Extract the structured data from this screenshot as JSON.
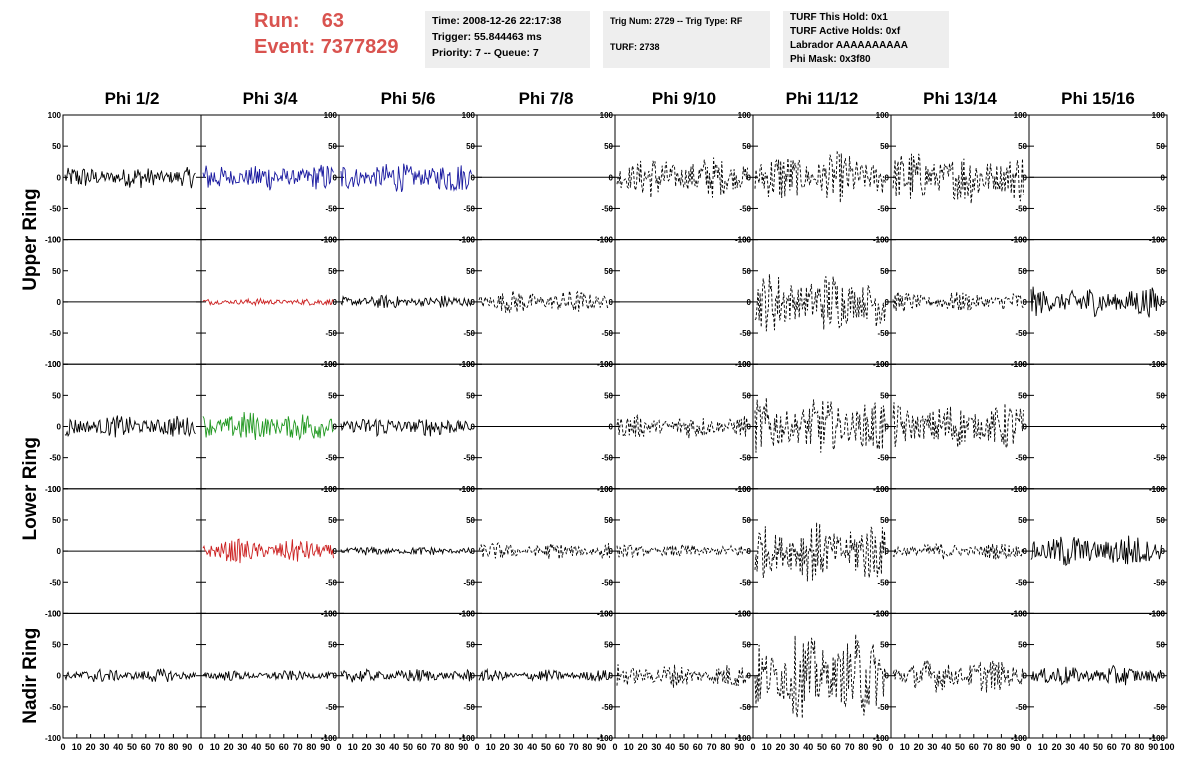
{
  "run": {
    "label": "Run:",
    "value": "63"
  },
  "event": {
    "label": "Event:",
    "value": "7377829"
  },
  "time_box": {
    "line1": "Time: 2008-12-26 22:17:38",
    "line2": "Trigger: 55.844463 ms",
    "line3": "Priority: 7 -- Queue: 7"
  },
  "trig_box": {
    "line1": "Trig Num: 2729 -- Trig Type: RF",
    "line2": "TURF: 2738"
  },
  "turf_box": {
    "line1": "TURF This Hold: 0x1",
    "line2": "TURF Active Holds: 0xf",
    "line3": "Labrador AAAAAAAAAA",
    "line4": "Phi Mask: 0x3f80"
  },
  "chart_data": {
    "type": "line",
    "columns": [
      "Phi 1/2",
      "Phi 3/4",
      "Phi 5/6",
      "Phi 7/8",
      "Phi 9/10",
      "Phi 11/12",
      "Phi 13/14",
      "Phi 15/16"
    ],
    "ring_labels": [
      "Upper Ring",
      "Lower Ring",
      "Nadir Ring"
    ],
    "x_ticks": [
      "0",
      "10",
      "20",
      "30",
      "40",
      "50",
      "60",
      "70",
      "80",
      "90",
      "100"
    ],
    "y_ticks": [
      "100",
      "50",
      "0",
      "-50",
      "-100"
    ],
    "xlim": [
      0,
      100
    ],
    "ylim": [
      -100,
      100
    ],
    "colors": {
      "black": "#000000",
      "blue": "#1a1aa0",
      "red": "#cc2222",
      "green": "#229922"
    },
    "panels": [
      [
        {
          "style": "solid",
          "color": "black",
          "amp": 13
        },
        {
          "style": "solid",
          "color": "blue",
          "amp": 16
        },
        {
          "style": "solid",
          "color": "blue",
          "amp": 18
        },
        {
          "style": "flat",
          "color": "black",
          "amp": 0
        },
        {
          "style": "dashed",
          "color": "black",
          "amp": 25
        },
        {
          "style": "dashed",
          "color": "black",
          "amp": 30
        },
        {
          "style": "dashed",
          "color": "black",
          "amp": 32
        },
        {
          "style": "flat",
          "color": "black",
          "amp": 0
        }
      ],
      [
        {
          "style": "flat",
          "color": "black",
          "amp": 0
        },
        {
          "style": "solid",
          "color": "red",
          "amp": 4
        },
        {
          "style": "solid",
          "color": "black",
          "amp": 8
        },
        {
          "style": "dashed",
          "color": "black",
          "amp": 14
        },
        {
          "style": "flat",
          "color": "black",
          "amp": 0
        },
        {
          "style": "dashed",
          "color": "black",
          "amp": 36
        },
        {
          "style": "dashed",
          "color": "black",
          "amp": 12
        },
        {
          "style": "solid",
          "color": "black",
          "amp": 18
        }
      ],
      [
        {
          "style": "solid",
          "color": "black",
          "amp": 13
        },
        {
          "style": "solid",
          "color": "green",
          "amp": 18
        },
        {
          "style": "solid",
          "color": "black",
          "amp": 12
        },
        {
          "style": "flat",
          "color": "black",
          "amp": 0
        },
        {
          "style": "dashed",
          "color": "black",
          "amp": 14
        },
        {
          "style": "dashed",
          "color": "black",
          "amp": 34
        },
        {
          "style": "dashed",
          "color": "black",
          "amp": 28
        },
        {
          "style": "flat",
          "color": "black",
          "amp": 0
        }
      ],
      [
        {
          "style": "flat",
          "color": "black",
          "amp": 0
        },
        {
          "style": "solid",
          "color": "red",
          "amp": 14
        },
        {
          "style": "solid",
          "color": "black",
          "amp": 5
        },
        {
          "style": "dashed",
          "color": "black",
          "amp": 10
        },
        {
          "style": "dashed",
          "color": "black",
          "amp": 8
        },
        {
          "style": "dashed",
          "color": "black",
          "amp": 36
        },
        {
          "style": "dashed",
          "color": "black",
          "amp": 10
        },
        {
          "style": "solid",
          "color": "black",
          "amp": 20
        }
      ],
      [
        {
          "style": "solid",
          "color": "black",
          "amp": 8
        },
        {
          "style": "solid",
          "color": "black",
          "amp": 6
        },
        {
          "style": "solid",
          "color": "black",
          "amp": 8
        },
        {
          "style": "solid",
          "color": "black",
          "amp": 7
        },
        {
          "style": "dashed",
          "color": "black",
          "amp": 14
        },
        {
          "style": "dashed",
          "color": "black",
          "amp": 50
        },
        {
          "style": "dashed",
          "color": "black",
          "amp": 20
        },
        {
          "style": "solid",
          "color": "black",
          "amp": 12
        }
      ]
    ]
  }
}
